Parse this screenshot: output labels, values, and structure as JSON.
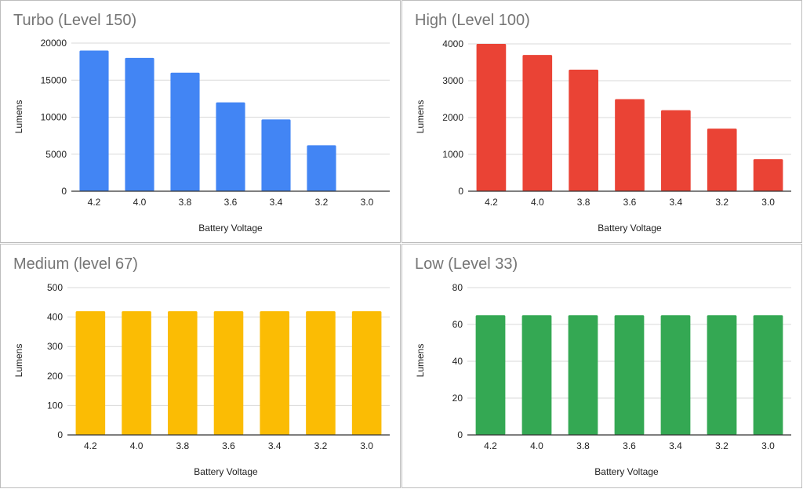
{
  "chart_data": [
    {
      "type": "bar",
      "title": "Turbo (Level 150)",
      "xlabel": "Battery Voltage",
      "ylabel": "Lumens",
      "categories": [
        "4.2",
        "4.0",
        "3.8",
        "3.6",
        "3.4",
        "3.2",
        "3.0"
      ],
      "values": [
        19000,
        18000,
        16000,
        12000,
        9700,
        6200,
        0
      ],
      "ylim": [
        0,
        20000
      ],
      "yticks": [
        "0",
        "5000",
        "10000",
        "15000",
        "20000"
      ],
      "color": "#4285f4",
      "grid": true
    },
    {
      "type": "bar",
      "title": "High (Level 100)",
      "xlabel": "Battery Voltage",
      "ylabel": "Lumens",
      "categories": [
        "4.2",
        "4.0",
        "3.8",
        "3.6",
        "3.4",
        "3.2",
        "3.0"
      ],
      "values": [
        4000,
        3700,
        3300,
        2500,
        2200,
        1700,
        870
      ],
      "ylim": [
        0,
        4000
      ],
      "yticks": [
        "0",
        "1000",
        "2000",
        "3000",
        "4000"
      ],
      "color": "#ea4335",
      "grid": true
    },
    {
      "type": "bar",
      "title": "Medium (level 67)",
      "xlabel": "Battery Voltage",
      "ylabel": "Lumens",
      "categories": [
        "4.2",
        "4.0",
        "3.8",
        "3.6",
        "3.4",
        "3.2",
        "3.0"
      ],
      "values": [
        420,
        420,
        420,
        420,
        420,
        420,
        420
      ],
      "ylim": [
        0,
        500
      ],
      "yticks": [
        "0",
        "100",
        "200",
        "300",
        "400",
        "500"
      ],
      "color": "#fbbc04",
      "grid": true
    },
    {
      "type": "bar",
      "title": "Low (Level 33)",
      "xlabel": "Battery Voltage",
      "ylabel": "Lumens",
      "categories": [
        "4.2",
        "4.0",
        "3.8",
        "3.6",
        "3.4",
        "3.2",
        "3.0"
      ],
      "values": [
        65,
        65,
        65,
        65,
        65,
        65,
        65
      ],
      "ylim": [
        0,
        80
      ],
      "yticks": [
        "0",
        "20",
        "40",
        "60",
        "80"
      ],
      "color": "#34a853",
      "grid": true
    }
  ]
}
